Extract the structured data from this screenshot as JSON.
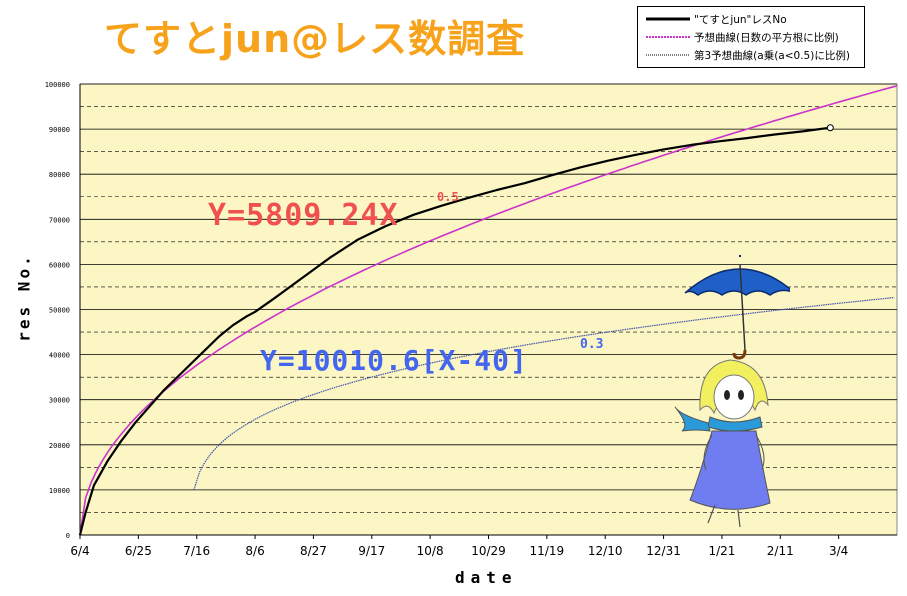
{
  "title": "てすとjun@レス数調査",
  "legend": {
    "items": [
      {
        "label": "\"てすとjun\"レスNo",
        "color": "#000000"
      },
      {
        "label": "予想曲線(日数の平方根に比例)",
        "color": "#cc33cc"
      },
      {
        "label": "第3予想曲線(a乗(a<0.5)に比例)",
        "color": "#555555"
      }
    ]
  },
  "equations": {
    "red": "Y=5809.24X",
    "red_exp": "0.5",
    "blue": "Y=10010.6[X-40]",
    "blue_exp": "0.3"
  },
  "colors": {
    "plot_bg": "#fbf6c4",
    "grid": "#000000",
    "title": "#f7a21b",
    "eq_red": "#f05050",
    "eq_blue": "#4466ee",
    "umbrella": "#1f5fc8",
    "hair": "#f3f060",
    "dress": "#6f7df0"
  },
  "chart_data": {
    "type": "line",
    "xlabel": "date",
    "ylabel": "res No.",
    "x_ticks": [
      "6/4",
      "6/25",
      "7/16",
      "8/6",
      "8/27",
      "9/17",
      "10/8",
      "10/29",
      "11/19",
      "12/10",
      "12/31",
      "1/21",
      "2/11",
      "3/4"
    ],
    "x_tick_days": [
      0,
      21,
      42,
      63,
      84,
      105,
      126,
      147,
      168,
      189,
      210,
      231,
      252,
      273
    ],
    "x_range_days": [
      0,
      294
    ],
    "ylim": [
      0,
      100000
    ],
    "y_ticks": [
      0,
      10000,
      20000,
      30000,
      40000,
      50000,
      60000,
      70000,
      80000,
      90000,
      100000
    ],
    "y_tick_labels": [
      "0",
      "10000",
      "20000",
      "30000",
      "40000",
      "50000",
      "60000",
      "70000",
      "80000",
      "90000",
      "100000"
    ],
    "grid": true,
    "series": [
      {
        "name": "\"てすとjun\"レスNo",
        "x_days": [
          0,
          2,
          5,
          10,
          15,
          20,
          25,
          30,
          35,
          40,
          45,
          50,
          55,
          60,
          63,
          70,
          80,
          90,
          100,
          110,
          120,
          130,
          140,
          150,
          160,
          170,
          180,
          190,
          200,
          210,
          220,
          230,
          240,
          250,
          260,
          270
        ],
        "values": [
          0,
          5000,
          11000,
          16500,
          21000,
          25000,
          28500,
          32000,
          35000,
          38000,
          41000,
          44000,
          46500,
          48500,
          49500,
          52500,
          57000,
          61500,
          65500,
          68500,
          71000,
          73000,
          74800,
          76500,
          78000,
          79800,
          81500,
          83000,
          84300,
          85500,
          86500,
          87300,
          88000,
          88800,
          89500,
          90300
        ]
      },
      {
        "name": "予想曲線(日数の平方根に比例)",
        "formula": "5809.24*x^0.5",
        "x_days": [
          0,
          270,
          294
        ],
        "values": [
          0,
          95400,
          99600
        ]
      },
      {
        "name": "第3予想曲線(a乗(a<0.5)に比例)",
        "formula": "10010.6*(x-40)^0.3"
      }
    ],
    "end_marker": {
      "x_day": 270,
      "value": 90300
    }
  }
}
